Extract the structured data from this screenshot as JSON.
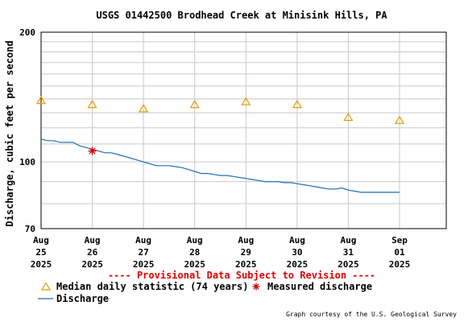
{
  "chart_data": {
    "type": "line",
    "title": "USGS 01442500 Brodhead Creek at Minisink Hills, PA",
    "ylabel": "Discharge, cubic feet per second",
    "xlabel": "",
    "yscale": "log",
    "ylim": [
      70,
      200
    ],
    "yticks": [
      {
        "value": 70,
        "label": "70"
      },
      {
        "value": 100,
        "label": "100"
      },
      {
        "value": 200,
        "label": "200"
      }
    ],
    "xlim": [
      "2025-08-25 00:00",
      "2025-09-01 00:00"
    ],
    "xticks": [
      {
        "date": "2025-08-25",
        "label": [
          "Aug",
          "25",
          "2025"
        ]
      },
      {
        "date": "2025-08-26",
        "label": [
          "Aug",
          "26",
          "2025"
        ]
      },
      {
        "date": "2025-08-27",
        "label": [
          "Aug",
          "27",
          "2025"
        ]
      },
      {
        "date": "2025-08-28",
        "label": [
          "Aug",
          "28",
          "2025"
        ]
      },
      {
        "date": "2025-08-29",
        "label": [
          "Aug",
          "29",
          "2025"
        ]
      },
      {
        "date": "2025-08-30",
        "label": [
          "Aug",
          "30",
          "2025"
        ]
      },
      {
        "date": "2025-08-31",
        "label": [
          "Aug",
          "31",
          "2025"
        ]
      },
      {
        "date": "2025-09-01",
        "label": [
          "Sep",
          "01",
          "2025"
        ]
      }
    ],
    "grid": true,
    "notice": "---- Provisional Data Subject to Revision ----",
    "credit": "Graph courtesy of the U.S. Geological Survey",
    "legend_position": "bottom-left",
    "series": [
      {
        "name": "Discharge",
        "kind": "line",
        "color": "#1f6fb0",
        "points": [
          [
            "2025-08-25 00:00",
            113
          ],
          [
            "2025-08-25 03:00",
            112
          ],
          [
            "2025-08-25 06:00",
            112
          ],
          [
            "2025-08-25 09:00",
            111
          ],
          [
            "2025-08-25 12:00",
            111
          ],
          [
            "2025-08-25 15:00",
            111
          ],
          [
            "2025-08-25 18:00",
            109
          ],
          [
            "2025-08-25 21:00",
            108
          ],
          [
            "2025-08-26 00:00",
            107
          ],
          [
            "2025-08-26 03:00",
            106
          ],
          [
            "2025-08-26 06:00",
            105
          ],
          [
            "2025-08-26 09:00",
            105
          ],
          [
            "2025-08-26 12:00",
            104
          ],
          [
            "2025-08-26 15:00",
            103
          ],
          [
            "2025-08-26 18:00",
            102
          ],
          [
            "2025-08-26 21:00",
            101
          ],
          [
            "2025-08-27 00:00",
            100
          ],
          [
            "2025-08-27 03:00",
            99
          ],
          [
            "2025-08-27 06:00",
            98
          ],
          [
            "2025-08-27 09:00",
            98
          ],
          [
            "2025-08-27 12:00",
            98
          ],
          [
            "2025-08-27 15:00",
            97.5
          ],
          [
            "2025-08-27 18:00",
            97
          ],
          [
            "2025-08-27 21:00",
            96
          ],
          [
            "2025-08-28 00:00",
            95
          ],
          [
            "2025-08-28 03:00",
            94
          ],
          [
            "2025-08-28 06:00",
            94
          ],
          [
            "2025-08-28 09:00",
            93.5
          ],
          [
            "2025-08-28 12:00",
            93
          ],
          [
            "2025-08-28 15:00",
            93
          ],
          [
            "2025-08-28 18:00",
            92.5
          ],
          [
            "2025-08-28 21:00",
            92
          ],
          [
            "2025-08-29 00:00",
            91.5
          ],
          [
            "2025-08-29 03:00",
            91
          ],
          [
            "2025-08-29 06:00",
            90.5
          ],
          [
            "2025-08-29 09:00",
            90
          ],
          [
            "2025-08-29 12:00",
            90
          ],
          [
            "2025-08-29 15:00",
            90
          ],
          [
            "2025-08-29 18:00",
            89.5
          ],
          [
            "2025-08-29 21:00",
            89.5
          ],
          [
            "2025-08-30 00:00",
            89
          ],
          [
            "2025-08-30 03:00",
            88.5
          ],
          [
            "2025-08-30 06:00",
            88
          ],
          [
            "2025-08-30 09:00",
            87.5
          ],
          [
            "2025-08-30 12:00",
            87
          ],
          [
            "2025-08-30 15:00",
            86.5
          ],
          [
            "2025-08-30 18:00",
            86.5
          ],
          [
            "2025-08-30 21:00",
            87
          ],
          [
            "2025-08-31 00:00",
            86
          ],
          [
            "2025-08-31 03:00",
            85.5
          ],
          [
            "2025-08-31 06:00",
            85
          ],
          [
            "2025-08-31 09:00",
            85
          ],
          [
            "2025-08-31 12:00",
            85
          ],
          [
            "2025-08-31 15:00",
            85
          ],
          [
            "2025-08-31 18:00",
            85
          ],
          [
            "2025-08-31 21:00",
            85
          ],
          [
            "2025-09-01 00:00",
            85
          ]
        ]
      },
      {
        "name": "Median daily statistic (74 years)",
        "kind": "marker",
        "marker": "triangle",
        "color": "#e69a00",
        "points": [
          [
            "2025-08-25 00:00",
            139
          ],
          [
            "2025-08-26 00:00",
            136
          ],
          [
            "2025-08-27 00:00",
            133
          ],
          [
            "2025-08-28 00:00",
            136
          ],
          [
            "2025-08-29 00:00",
            138
          ],
          [
            "2025-08-30 00:00",
            136
          ],
          [
            "2025-08-31 00:00",
            127
          ],
          [
            "2025-09-01 00:00",
            125
          ]
        ]
      },
      {
        "name": "Measured discharge",
        "kind": "marker",
        "marker": "asterisk",
        "color": "#d40000",
        "points": [
          [
            "2025-08-26 00:00",
            106
          ]
        ]
      }
    ]
  }
}
